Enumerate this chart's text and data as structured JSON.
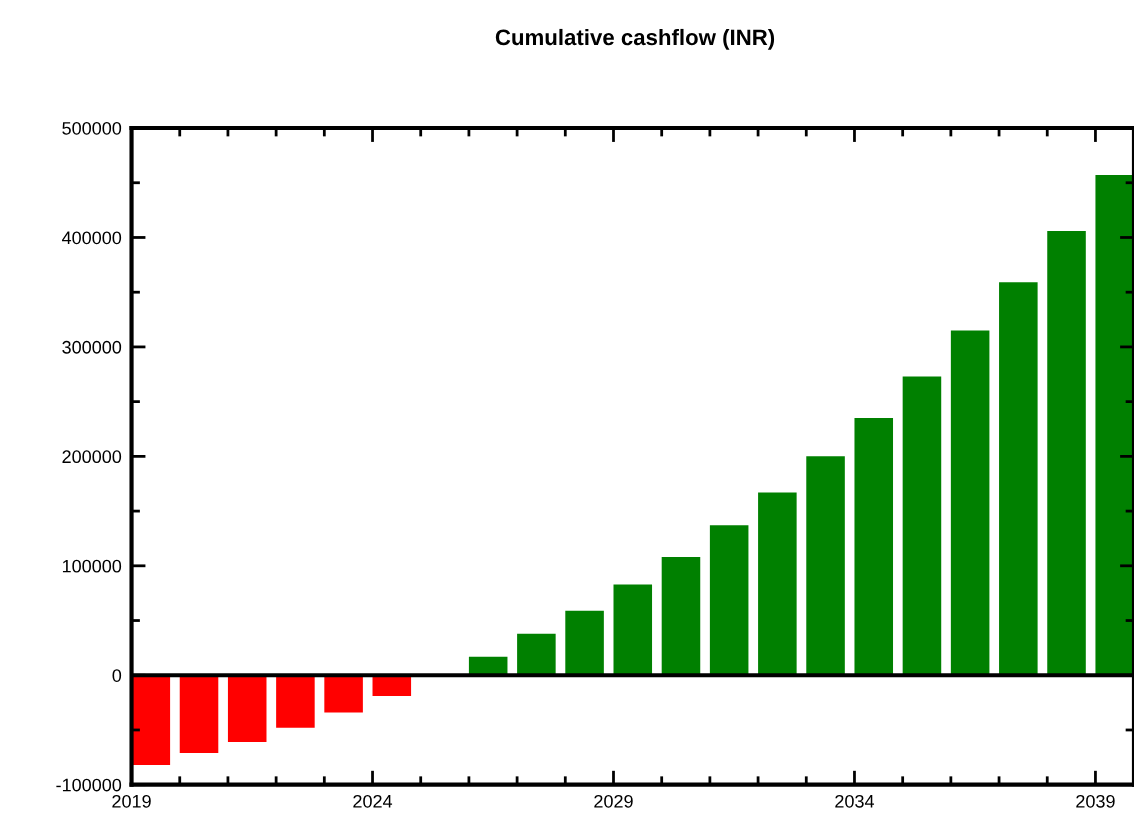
{
  "chart_data": {
    "type": "bar",
    "title": "Cumulative cashflow (INR)",
    "x": [
      2019.4,
      2020.4,
      2021.4,
      2022.4,
      2023.4,
      2024.4,
      2025.4,
      2026.4,
      2027.4,
      2028.4,
      2029.4,
      2030.4,
      2031.4,
      2032.4,
      2033.4,
      2034.4,
      2035.4,
      2036.4,
      2037.4,
      2038.4,
      2039.4
    ],
    "values": [
      -82000,
      -71000,
      -61000,
      -48000,
      -34000,
      -19000,
      0,
      17000,
      38000,
      59000,
      83000,
      108000,
      137000,
      167000,
      200000,
      235000,
      273000,
      315000,
      359000,
      406000,
      457000
    ],
    "colors": [
      "#ff0000",
      "#ff0000",
      "#ff0000",
      "#ff0000",
      "#ff0000",
      "#ff0000",
      "#008000",
      "#008000",
      "#008000",
      "#008000",
      "#008000",
      "#008000",
      "#008000",
      "#008000",
      "#008000",
      "#008000",
      "#008000",
      "#008000",
      "#008000",
      "#008000",
      "#008000"
    ],
    "xlim": [
      2019,
      2039.8
    ],
    "xticks": [
      2019,
      2024,
      2029,
      2034,
      2039
    ],
    "ylim": [
      -100000,
      500000
    ],
    "yticks": [
      -100000,
      0,
      100000,
      200000,
      300000,
      400000,
      500000
    ],
    "ref_lines": [
      {
        "axis": "y",
        "value": 0,
        "color": "#000000"
      }
    ],
    "grid": false,
    "legend": false
  }
}
